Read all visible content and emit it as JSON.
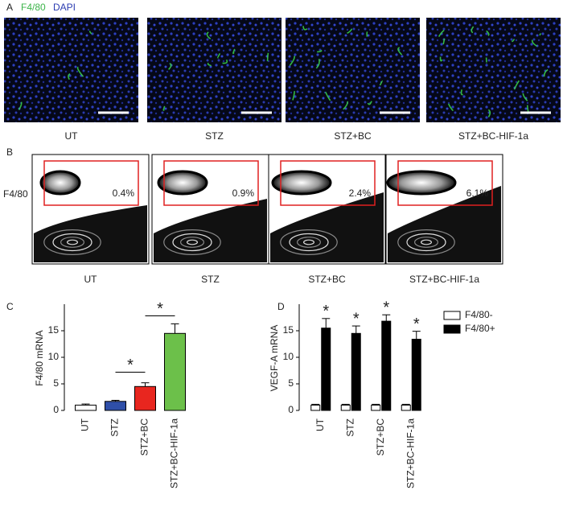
{
  "panel_a": {
    "letter": "A",
    "stain_1": "F4/80",
    "stain_2": "DAPI",
    "labels": [
      "UT",
      "STZ",
      "STZ+BC",
      "STZ+BC-HIF-1a"
    ]
  },
  "panel_b": {
    "letter": "B",
    "y_label": "F4/80",
    "labels": [
      "UT",
      "STZ",
      "STZ+BC",
      "STZ+BC-HIF-1a"
    ],
    "percentages": [
      "0.4%",
      "0.9%",
      "2.4%",
      "6.1%"
    ]
  },
  "chart_data": [
    {
      "panel": "C",
      "type": "bar",
      "ylabel": "F4/80 mRNA",
      "categories": [
        "UT",
        "STZ",
        "STZ+BC",
        "STZ+BC-HIF-1a"
      ],
      "values": [
        1.0,
        1.7,
        4.5,
        14.5
      ],
      "errors": [
        0.2,
        0.2,
        0.7,
        1.8
      ],
      "colors": [
        "#ffffff",
        "#2f4fa8",
        "#e8261f",
        "#6cc04a"
      ],
      "ylim": [
        0,
        20
      ],
      "yticks": [
        0,
        5,
        10,
        15
      ],
      "significance": [
        "*",
        "*"
      ]
    },
    {
      "panel": "D",
      "type": "grouped_bar",
      "ylabel": "VEGF-A mRNA",
      "categories": [
        "UT",
        "STZ",
        "STZ+BC",
        "STZ+BC-HIF-1a"
      ],
      "series": [
        {
          "name": "F4/80-",
          "color": "#ffffff",
          "values": [
            1.0,
            1.0,
            1.0,
            1.0
          ],
          "errors": [
            0.15,
            0.15,
            0.15,
            0.15
          ]
        },
        {
          "name": "F4/80+",
          "color": "#000000",
          "values": [
            15.5,
            14.5,
            16.8,
            13.4
          ],
          "errors": [
            1.8,
            1.4,
            1.2,
            1.5
          ]
        }
      ],
      "ylim": [
        0,
        20
      ],
      "yticks": [
        0,
        5,
        10,
        15
      ],
      "significance": [
        "*",
        "*",
        "*",
        "*"
      ],
      "legend": "upper right"
    }
  ]
}
